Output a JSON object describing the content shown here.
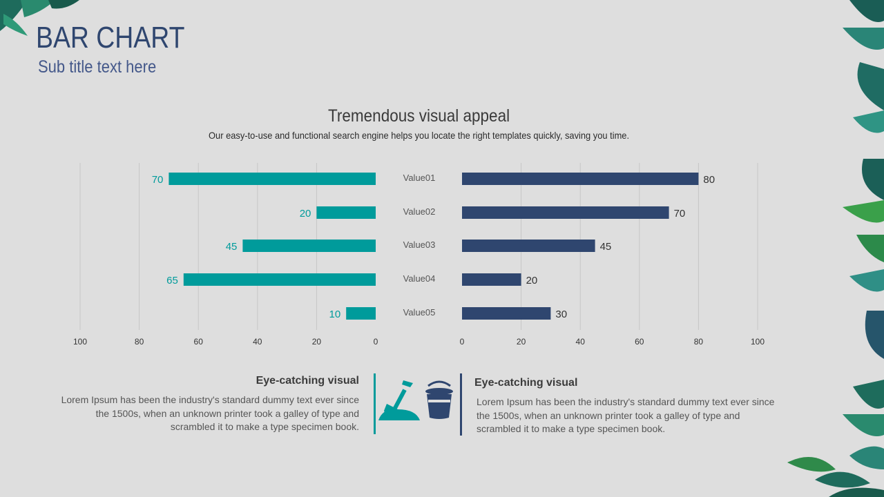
{
  "header": {
    "title": "BAR CHART",
    "subtitle": "Sub title text here"
  },
  "intro": {
    "heading": "Tremendous visual appeal",
    "description": "Our easy-to-use and functional search engine helps you locate the right templates quickly, saving you time."
  },
  "chart_data": {
    "type": "bar",
    "orientation": "horizontal-butterfly",
    "categories": [
      "Value01",
      "Value02",
      "Value03",
      "Value04",
      "Value05"
    ],
    "series": [
      {
        "name": "left",
        "values": [
          70,
          20,
          45,
          65,
          10
        ],
        "color": "#009b9b"
      },
      {
        "name": "right",
        "values": [
          80,
          70,
          45,
          20,
          30
        ],
        "color": "#2f466f"
      }
    ],
    "xlim": [
      0,
      100
    ],
    "ticks": [
      0,
      20,
      40,
      60,
      80,
      100
    ],
    "grid": true
  },
  "footer": {
    "left": {
      "title": "Eye-catching visual",
      "text": "Lorem Ipsum has been the industry's standard dummy text ever since the 1500s, when an unknown printer took a galley of type and scrambled it to make a type specimen book."
    },
    "right": {
      "title": "Eye-catching visual",
      "text": "Lorem Ipsum has been the industry's standard dummy text ever since the 1500s, when an unknown printer took a galley of type and scrambled it to make a type specimen book."
    },
    "icons": [
      "shovel-icon",
      "bucket-icon"
    ]
  },
  "colors": {
    "teal": "#009b9b",
    "navy": "#2f466f",
    "background": "#dedede"
  }
}
